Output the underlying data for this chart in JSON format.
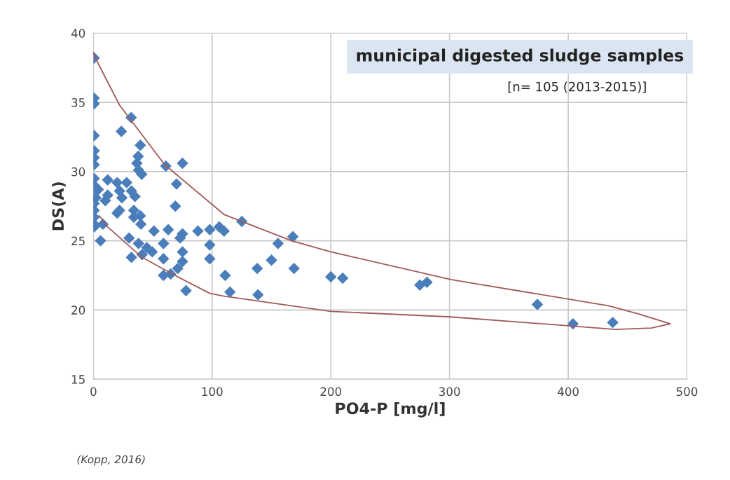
{
  "chart_data": {
    "type": "scatter",
    "title": "municipal digested sludge samples",
    "subtitle": "[n= 105 (2013-2015)]",
    "xlabel": "PO4-P [mg/l]",
    "ylabel": "DS(A)",
    "annotations": [
      "(Kopp, 2016)"
    ],
    "xlim": [
      0,
      500
    ],
    "xticks": [
      0,
      100,
      200,
      300,
      400,
      500
    ],
    "ylim": [
      15,
      40
    ],
    "yticks": [
      15,
      20,
      25,
      30,
      35,
      40
    ],
    "grid": true,
    "legend": false,
    "marker": "diamond",
    "series": [
      {
        "color": "#4a7ebb",
        "x": [
          0.6,
          0.6,
          0.6,
          0.6,
          0.6,
          0.6,
          0.6,
          0.6,
          0.6,
          0.6,
          0.6,
          0.6,
          0.6,
          0.6,
          0.6,
          23.5,
          31.8,
          39.5,
          37.7,
          36.6,
          38,
          40.7,
          61,
          75,
          70,
          69,
          12,
          20,
          28,
          4,
          12,
          22,
          32,
          35,
          10,
          24,
          22,
          34,
          39.5,
          2,
          20,
          8,
          34,
          40,
          51,
          63,
          75,
          88,
          98,
          106,
          6,
          30,
          38,
          45,
          59,
          73,
          75,
          98,
          32,
          41,
          49.5,
          59,
          75,
          98,
          71,
          65,
          59,
          78,
          125,
          110,
          155.5,
          168,
          150,
          138,
          169,
          111,
          115,
          138.6,
          200,
          210,
          275,
          281,
          374,
          404,
          437.5
        ],
        "values": [
          38.2,
          35.3,
          34.9,
          32.6,
          31.5,
          31.0,
          30.5,
          29.5,
          29.0,
          28.2,
          27.7,
          27.2,
          26.7,
          26.2,
          26.0,
          32.9,
          33.9,
          31.9,
          31.1,
          30.6,
          30.1,
          29.8,
          30.4,
          30.6,
          29.1,
          27.5,
          29.4,
          29.2,
          29.2,
          28.7,
          28.3,
          28.6,
          28.6,
          28.2,
          27.9,
          28.1,
          27.2,
          27.2,
          26.8,
          28.1,
          27.0,
          26.2,
          26.7,
          26.2,
          25.7,
          25.8,
          25.5,
          25.7,
          25.8,
          26.0,
          25.0,
          25.2,
          24.8,
          24.5,
          24.8,
          25.2,
          24.2,
          24.7,
          23.8,
          24.0,
          24.2,
          23.7,
          23.5,
          23.7,
          23.0,
          22.6,
          22.5,
          21.4,
          26.4,
          25.7,
          24.8,
          25.3,
          23.6,
          23.0,
          23.0,
          22.5,
          21.3,
          21.1,
          22.4,
          22.3,
          21.8,
          22.0,
          20.4,
          19.0,
          19.1
        ]
      },
      {
        "type": "line",
        "color": "#a05a5a",
        "marker": "none",
        "x": [
          0,
          4,
          22,
          60,
          110,
          167,
          200,
          301,
          322,
          434,
          460,
          486,
          470,
          440,
          301,
          200,
          110,
          98,
          71,
          41,
          12,
          5
        ],
        "values": [
          38.6,
          37.8,
          34.8,
          30.5,
          26.9,
          25.0,
          24.2,
          22.2,
          21.9,
          20.3,
          19.7,
          19.0,
          18.7,
          18.6,
          19.5,
          19.9,
          21.0,
          21.2,
          22.4,
          23.8,
          26.0,
          26.8
        ]
      }
    ]
  }
}
